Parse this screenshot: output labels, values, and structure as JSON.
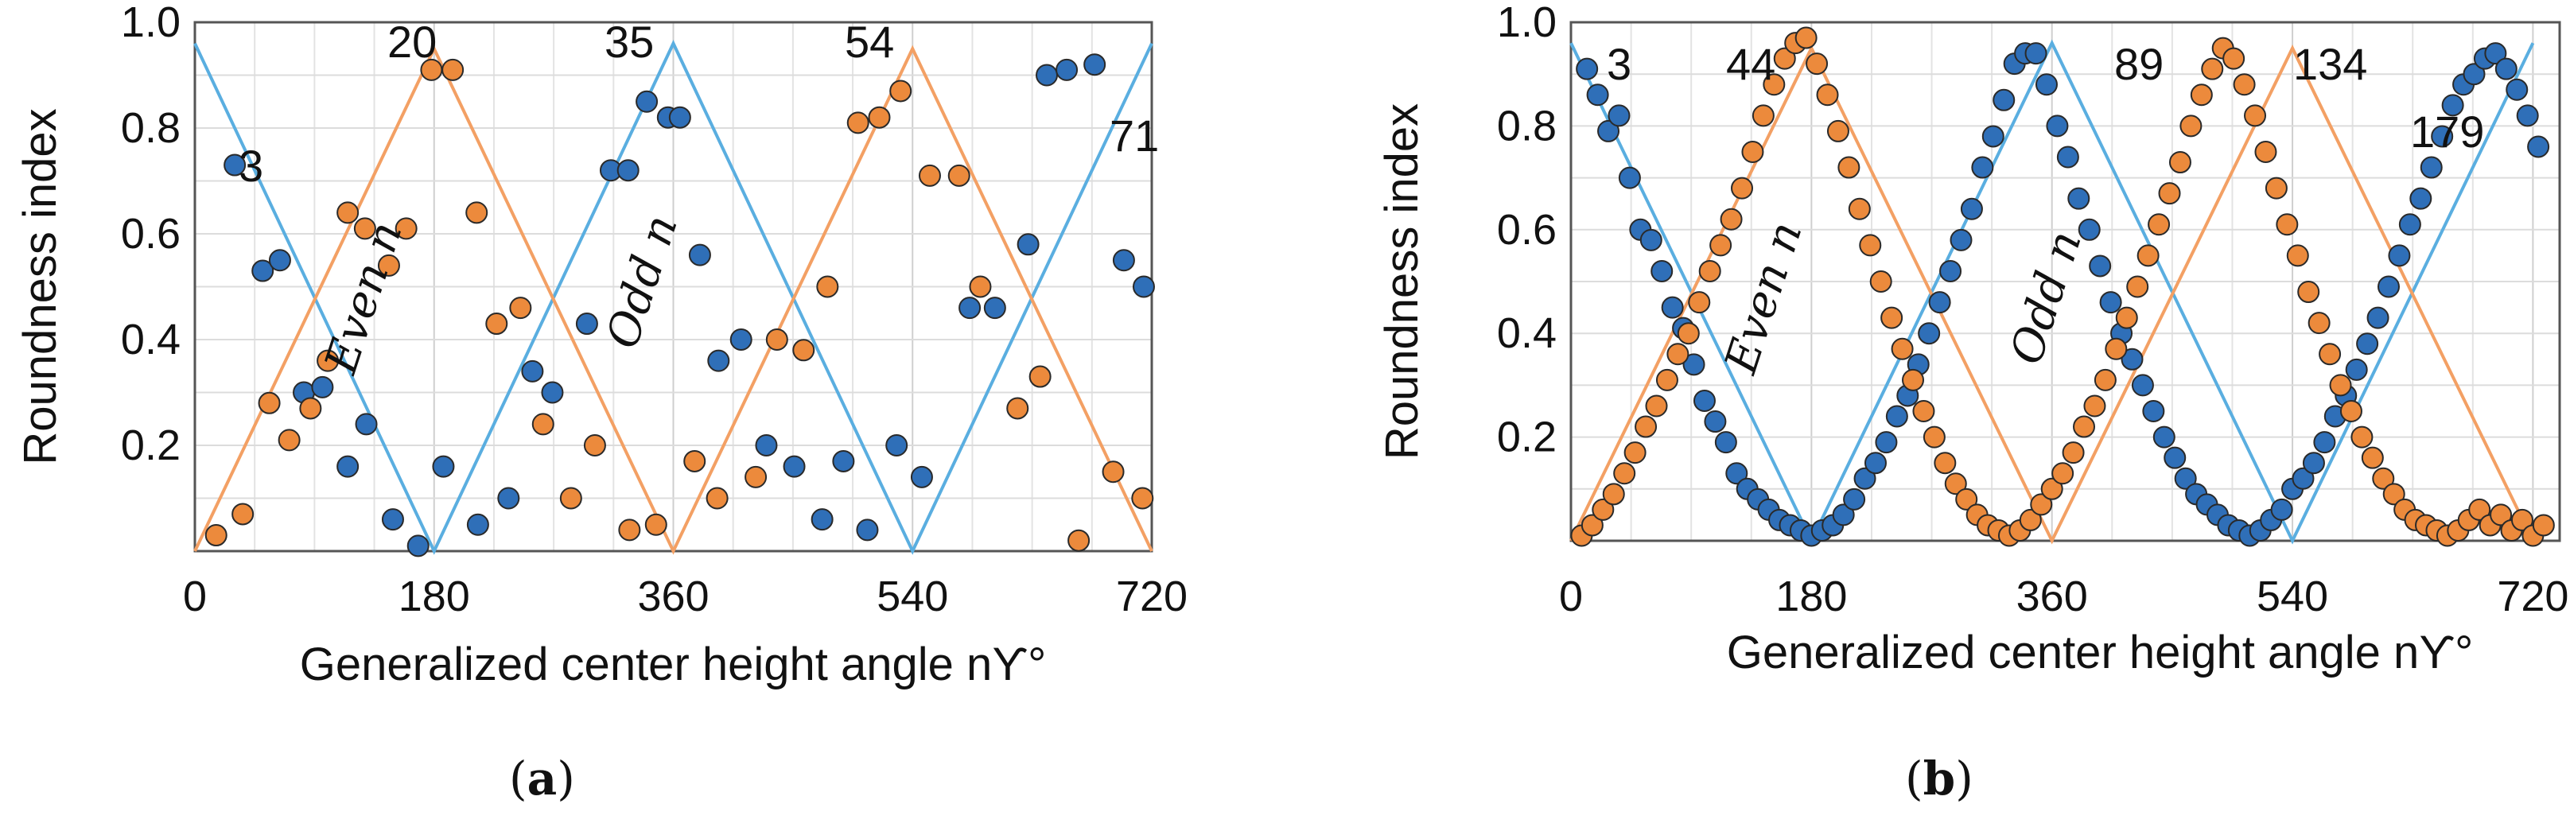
{
  "figure": {
    "panels": [
      {
        "caption": {
          "open": "(",
          "letter": "a",
          "close": ")"
        },
        "even_label": {
          "main": "Even",
          "var": "n"
        },
        "odd_label": {
          "main": "Odd",
          "var": "n"
        },
        "point_labels": [
          "3",
          "20",
          "35",
          "54",
          "71"
        ]
      },
      {
        "caption": {
          "open": "(",
          "letter": "b",
          "close": ")"
        },
        "even_label": {
          "main": "Even",
          "var": "n"
        },
        "odd_label": {
          "main": "Odd",
          "var": "n"
        },
        "point_labels": [
          "3",
          "44",
          "89",
          "134",
          "179"
        ]
      }
    ]
  },
  "chart_data": [
    {
      "type": "scatter",
      "panel": "a",
      "xlabel": "Generalized center  height angle nϒ°",
      "ylabel": "Roundness index",
      "xlim": [
        0,
        720
      ],
      "ylim": [
        0,
        1.0
      ],
      "xticks": [
        "0",
        "180",
        "360",
        "540",
        "720"
      ],
      "yticks": [
        "0.2",
        "0.4",
        "0.6",
        "0.8",
        "1.0"
      ],
      "grid": true,
      "colors": {
        "odd": "#2f6fb8",
        "even": "#ec8a3c",
        "odd_line": "#5aaee0",
        "even_line": "#f3a064"
      },
      "series": [
        {
          "name": "Odd n",
          "x": [
            30,
            51,
            64,
            82,
            96,
            115,
            129,
            149,
            168,
            187,
            213,
            236,
            254,
            269,
            295,
            313,
            326,
            340,
            356,
            365,
            380,
            394,
            411,
            430,
            451,
            472,
            488,
            506,
            528,
            547,
            583,
            602,
            627,
            641,
            656,
            677,
            699,
            714
          ],
          "y": [
            0.73,
            0.53,
            0.55,
            0.3,
            0.31,
            0.16,
            0.24,
            0.06,
            0.01,
            0.16,
            0.05,
            0.1,
            0.34,
            0.3,
            0.43,
            0.72,
            0.72,
            0.85,
            0.82,
            0.82,
            0.56,
            0.36,
            0.4,
            0.2,
            0.16,
            0.06,
            0.17,
            0.04,
            0.2,
            0.14,
            0.46,
            0.46,
            0.58,
            0.9,
            0.91,
            0.92,
            0.55,
            0.5
          ]
        },
        {
          "name": "Even n",
          "x": [
            16,
            36,
            56,
            71,
            87,
            100,
            115,
            128,
            146,
            159,
            178,
            194,
            212,
            227,
            245,
            262,
            283,
            301,
            327,
            347,
            376,
            393,
            422,
            438,
            458,
            476,
            499,
            515,
            531,
            553,
            575,
            591,
            619,
            636,
            665,
            691,
            713
          ],
          "y": [
            0.03,
            0.07,
            0.28,
            0.21,
            0.27,
            0.36,
            0.64,
            0.61,
            0.54,
            0.61,
            0.91,
            0.91,
            0.64,
            0.43,
            0.46,
            0.24,
            0.1,
            0.2,
            0.04,
            0.05,
            0.17,
            0.1,
            0.14,
            0.4,
            0.38,
            0.5,
            0.81,
            0.82,
            0.87,
            0.71,
            0.71,
            0.5,
            0.27,
            0.33,
            0.02,
            0.15,
            0.1
          ]
        }
      ],
      "fit_lines": [
        {
          "name": "Odd n fit",
          "x": [
            0,
            180,
            360,
            540,
            720
          ],
          "y": [
            0.96,
            0.0,
            0.96,
            0.0,
            0.96
          ]
        },
        {
          "name": "Even n fit",
          "x": [
            0,
            180,
            360,
            540,
            720
          ],
          "y": [
            0.0,
            0.95,
            0.0,
            0.95,
            0.0
          ]
        }
      ]
    },
    {
      "type": "scatter",
      "panel": "b",
      "xlabel": "Generalized center  height angle nϒ°",
      "ylabel": "Roundness index",
      "xlim": [
        0,
        740
      ],
      "ylim": [
        0,
        1.0
      ],
      "xticks": [
        "0",
        "180",
        "360",
        "540",
        "720"
      ],
      "yticks": [
        "0.2",
        "0.4",
        "0.6",
        "0.8",
        "1.0"
      ],
      "grid": true,
      "colors": {
        "odd": "#2f6fb8",
        "even": "#ec8a3c",
        "odd_line": "#5aaee0",
        "even_line": "#f3a064"
      },
      "series": [
        {
          "name": "Odd n",
          "x": [
            12,
            20,
            28,
            36,
            44,
            52,
            60,
            68,
            76,
            84,
            92,
            100,
            108,
            116,
            124,
            132,
            140,
            148,
            156,
            164,
            172,
            180,
            188,
            196,
            204,
            212,
            220,
            228,
            236,
            244,
            252,
            260,
            268,
            276,
            284,
            292,
            300,
            308,
            316,
            324,
            332,
            340,
            348,
            356,
            364,
            372,
            380,
            388,
            396,
            404,
            412,
            420,
            428,
            436,
            444,
            452,
            460,
            468,
            476,
            484,
            492,
            500,
            508,
            516,
            524,
            532,
            540,
            548,
            556,
            564,
            572,
            580,
            588,
            596,
            604,
            612,
            620,
            628,
            636,
            644,
            652,
            660,
            668,
            676,
            684,
            692,
            700,
            708,
            716,
            724
          ],
          "y": [
            0.91,
            0.86,
            0.79,
            0.82,
            0.7,
            0.6,
            0.58,
            0.52,
            0.45,
            0.41,
            0.34,
            0.27,
            0.23,
            0.19,
            0.13,
            0.1,
            0.08,
            0.06,
            0.04,
            0.03,
            0.02,
            0.01,
            0.02,
            0.03,
            0.05,
            0.08,
            0.12,
            0.15,
            0.19,
            0.24,
            0.28,
            0.34,
            0.4,
            0.46,
            0.52,
            0.58,
            0.64,
            0.72,
            0.78,
            0.85,
            0.92,
            0.94,
            0.94,
            0.88,
            0.8,
            0.74,
            0.66,
            0.6,
            0.53,
            0.46,
            0.4,
            0.35,
            0.3,
            0.25,
            0.2,
            0.16,
            0.12,
            0.09,
            0.07,
            0.05,
            0.03,
            0.02,
            0.01,
            0.02,
            0.04,
            0.06,
            0.1,
            0.12,
            0.15,
            0.19,
            0.24,
            0.28,
            0.33,
            0.38,
            0.43,
            0.49,
            0.55,
            0.61,
            0.66,
            0.72,
            0.78,
            0.84,
            0.88,
            0.9,
            0.93,
            0.94,
            0.91,
            0.87,
            0.82,
            0.76
          ]
        },
        {
          "name": "Even n",
          "x": [
            8,
            16,
            24,
            32,
            40,
            48,
            56,
            64,
            72,
            80,
            88,
            96,
            104,
            112,
            120,
            128,
            136,
            144,
            152,
            160,
            168,
            176,
            184,
            192,
            200,
            208,
            216,
            224,
            232,
            240,
            248,
            256,
            264,
            272,
            280,
            288,
            296,
            304,
            312,
            320,
            328,
            336,
            344,
            352,
            360,
            368,
            376,
            384,
            392,
            400,
            408,
            416,
            424,
            432,
            440,
            448,
            456,
            464,
            472,
            480,
            488,
            496,
            504,
            512,
            520,
            528,
            536,
            544,
            552,
            560,
            568,
            576,
            584,
            592,
            600,
            608,
            616,
            624,
            632,
            640,
            648,
            656,
            664,
            672,
            680,
            688,
            696,
            704,
            712,
            720,
            728
          ],
          "y": [
            0.01,
            0.03,
            0.06,
            0.09,
            0.13,
            0.17,
            0.22,
            0.26,
            0.31,
            0.36,
            0.4,
            0.46,
            0.52,
            0.57,
            0.62,
            0.68,
            0.75,
            0.82,
            0.88,
            0.93,
            0.96,
            0.97,
            0.92,
            0.86,
            0.79,
            0.72,
            0.64,
            0.57,
            0.5,
            0.43,
            0.37,
            0.31,
            0.25,
            0.2,
            0.15,
            0.11,
            0.08,
            0.05,
            0.03,
            0.02,
            0.01,
            0.02,
            0.04,
            0.07,
            0.1,
            0.13,
            0.17,
            0.22,
            0.26,
            0.31,
            0.37,
            0.43,
            0.49,
            0.55,
            0.61,
            0.67,
            0.73,
            0.8,
            0.86,
            0.91,
            0.95,
            0.93,
            0.88,
            0.82,
            0.75,
            0.68,
            0.61,
            0.55,
            0.48,
            0.42,
            0.36,
            0.3,
            0.25,
            0.2,
            0.16,
            0.12,
            0.09,
            0.06,
            0.04,
            0.03,
            0.02,
            0.01,
            0.02,
            0.04,
            0.06,
            0.03,
            0.05,
            0.02,
            0.04,
            0.01,
            0.03
          ]
        }
      ],
      "fit_lines": [
        {
          "name": "Odd n fit",
          "x": [
            0,
            180,
            360,
            540,
            720
          ],
          "y": [
            0.96,
            0.0,
            0.96,
            0.0,
            0.96
          ]
        },
        {
          "name": "Even n fit",
          "x": [
            0,
            180,
            360,
            540,
            720
          ],
          "y": [
            0.0,
            0.95,
            0.0,
            0.95,
            0.0
          ]
        }
      ]
    }
  ]
}
